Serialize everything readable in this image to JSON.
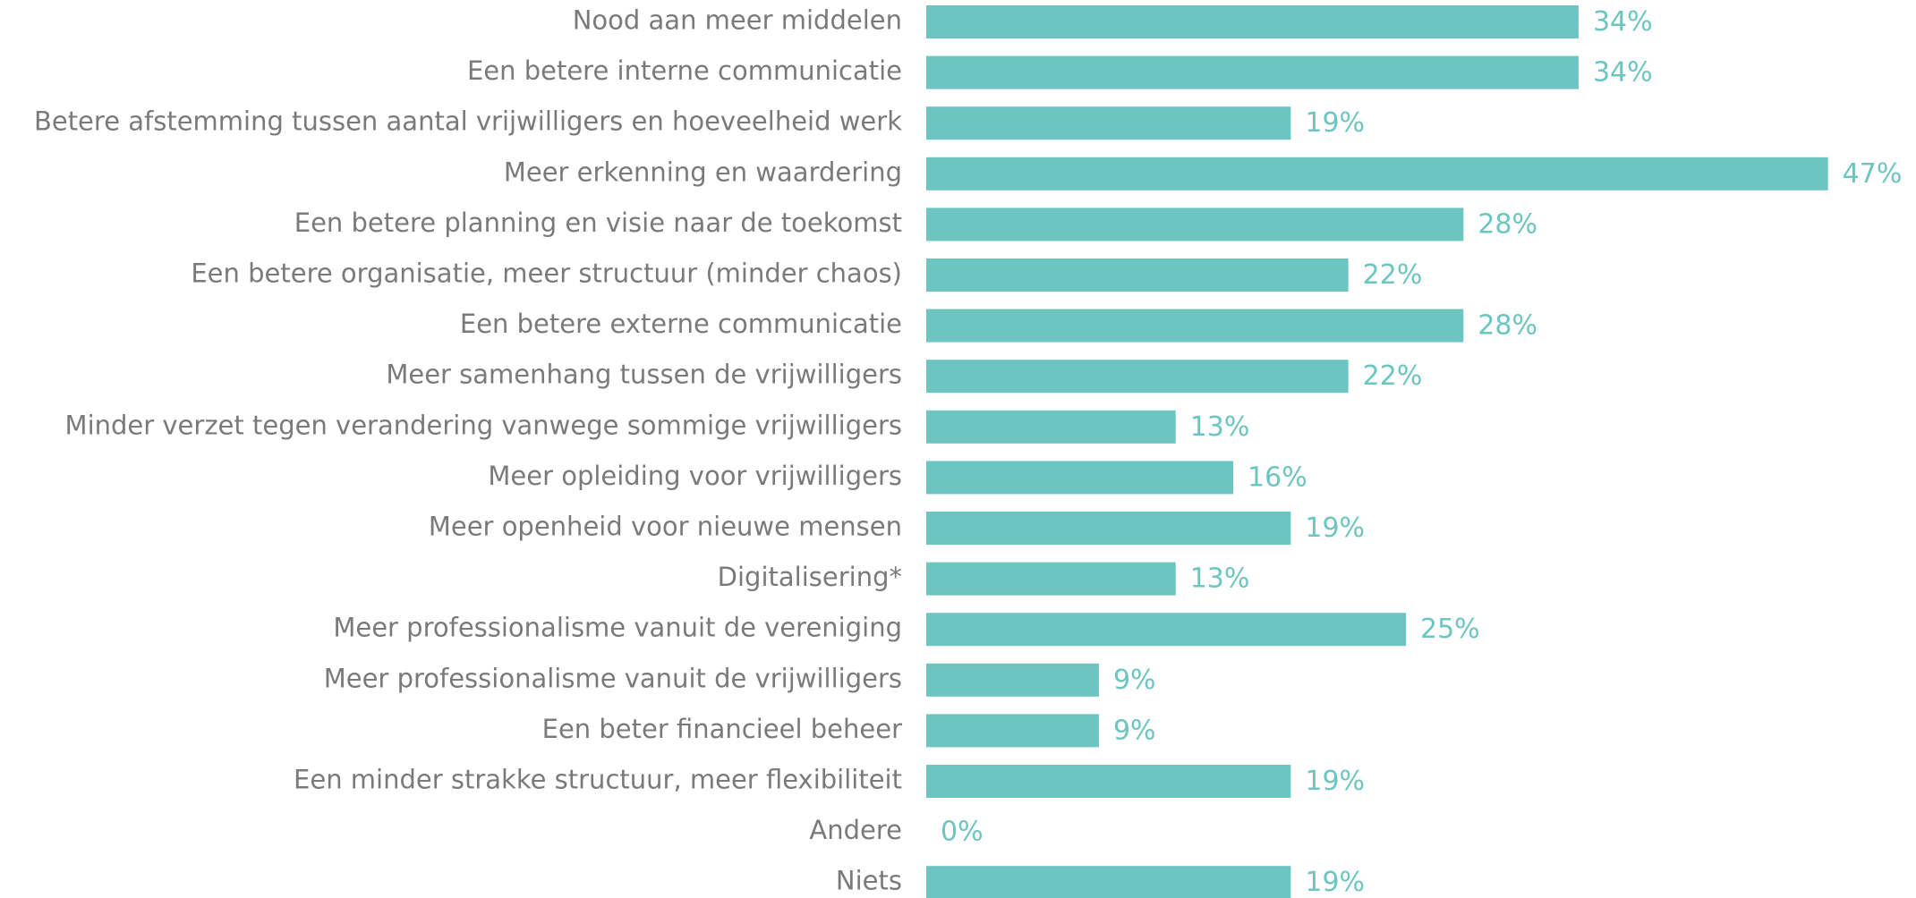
{
  "chart_data": {
    "type": "bar",
    "orientation": "horizontal",
    "color": "#6cc5c0",
    "categories": [
      "Nood aan meer middelen",
      "Een betere interne communicatie",
      "Betere afstemming tussen aantal vrijwilligers en hoeveelheid werk",
      "Meer erkenning en waardering",
      "Een betere planning en visie naar de toekomst",
      "Een betere organisatie, meer structuur (minder chaos)",
      "Een betere externe communicatie",
      "Meer samenhang tussen de vrijwilligers",
      "Minder verzet tegen verandering vanwege sommige vrijwilligers",
      "Meer opleiding voor vrijwilligers",
      "Meer openheid voor nieuwe mensen",
      "Digitalisering*",
      "Meer professionalisme vanuit de vereniging",
      "Meer professionalisme vanuit de vrijwilligers",
      "Een beter financieel beheer",
      "Een minder strakke structuur, meer flexibiliteit",
      "Andere",
      "Niets"
    ],
    "values": [
      34,
      34,
      19,
      47,
      28,
      22,
      28,
      22,
      13,
      16,
      19,
      13,
      25,
      9,
      9,
      19,
      0,
      19
    ],
    "value_labels": [
      "34%",
      "34%",
      "19%",
      "47%",
      "28%",
      "22%",
      "28%",
      "22%",
      "13%",
      "16%",
      "19%",
      "13%",
      "25%",
      "9%",
      "9%",
      "19%",
      "0%",
      "19%"
    ]
  }
}
